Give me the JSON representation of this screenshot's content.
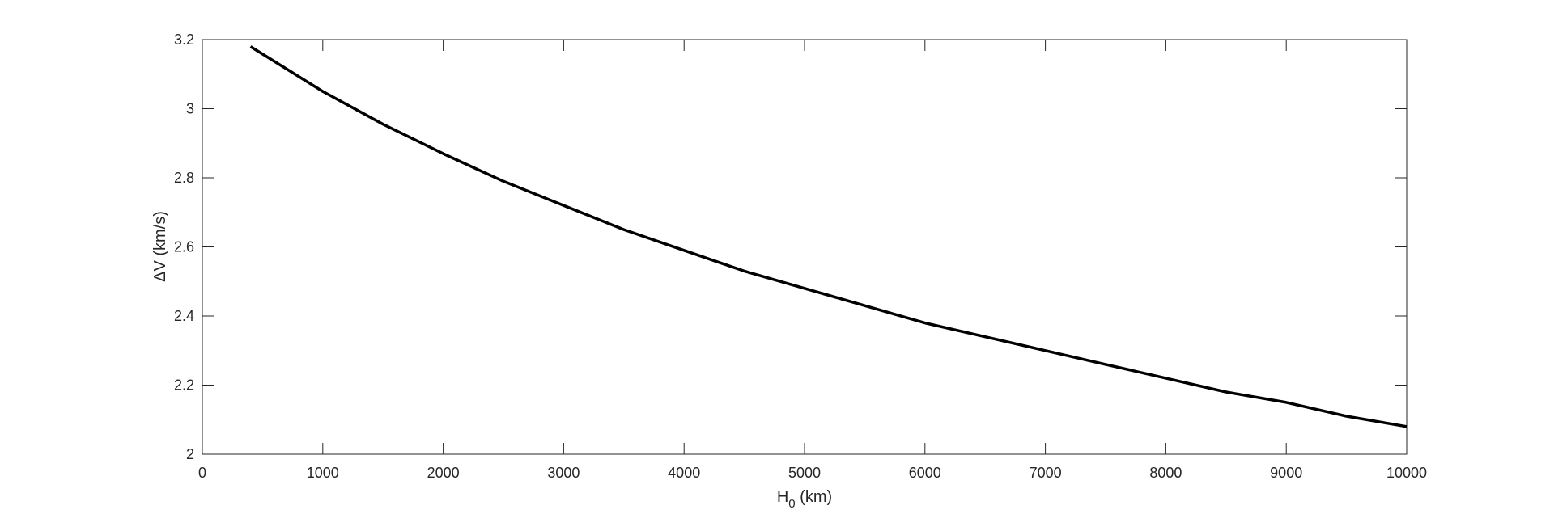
{
  "chart_data": {
    "type": "line",
    "title": "",
    "xlabel": {
      "main": "H",
      "sub": "0",
      "unit": " (km)"
    },
    "ylabel": "ΔV (km/s)",
    "xlim": [
      0,
      10000
    ],
    "ylim": [
      2,
      3.2
    ],
    "xticks": [
      0,
      1000,
      2000,
      3000,
      4000,
      5000,
      6000,
      7000,
      8000,
      9000,
      10000
    ],
    "yticks": [
      2,
      2.2,
      2.4,
      2.6,
      2.8,
      3,
      3.2
    ],
    "grid": false,
    "line_color": "#000000",
    "series": [
      {
        "x": [
          400,
          1000,
          1500,
          2000,
          2500,
          3000,
          3500,
          4000,
          4500,
          5000,
          5500,
          6000,
          6500,
          7000,
          7500,
          8000,
          8500,
          9000,
          9500,
          10000
        ],
        "y": [
          3.18,
          3.05,
          2.955,
          2.87,
          2.79,
          2.72,
          2.65,
          2.59,
          2.53,
          2.48,
          2.43,
          2.38,
          2.34,
          2.3,
          2.26,
          2.22,
          2.18,
          2.15,
          2.11,
          2.08
        ]
      }
    ]
  }
}
